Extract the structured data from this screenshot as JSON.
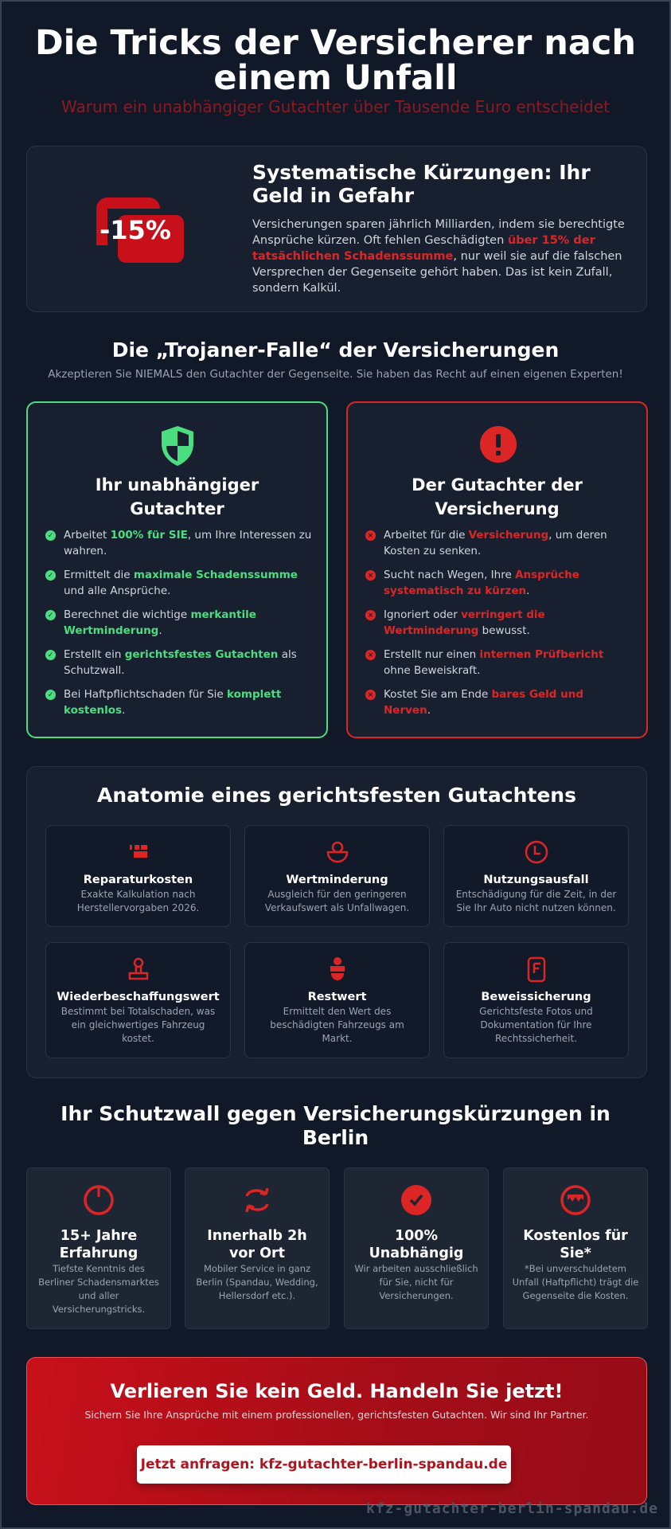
{
  "header": {
    "title": "Die Tricks der Versicherer nach einem Unfall",
    "subtitle": "Warum ein unabhängiger Gutachter über Tausende Euro entscheidet"
  },
  "intro": {
    "badge": "-15%",
    "heading": "Systematische Kürzungen: Ihr Geld in Gefahr",
    "text_before": "Versicherungen sparen jährlich Milliarden, indem sie berechtigte Ansprüche kürzen. Oft fehlen Geschädigten ",
    "text_highlight": "über 15% der tatsächlichen Schadenssumme",
    "text_after": ", nur weil sie auf die falschen Versprechen der Gegenseite gehört haben. Das ist kein Zufall, sondern Kalkül."
  },
  "trap": {
    "heading": "Die „Trojaner-Falle“ der Versicherungen",
    "subheading": "Akzeptieren Sie NIEMALS den Gutachter der Gegenseite. Sie haben das Recht auf einen eigenen Experten!",
    "good": {
      "icon": "shield-icon",
      "title": "Ihr unabhängiger Gutachter",
      "items": [
        {
          "pre": "Arbeitet ",
          "hl": "100% für SIE",
          "post": ", um Ihre Interessen zu wahren."
        },
        {
          "pre": "Ermittelt die ",
          "hl": "maximale Schadenssumme",
          "post": " und alle Ansprüche."
        },
        {
          "pre": "Berechnet die wichtige ",
          "hl": "merkantile Wertminderung",
          "post": "."
        },
        {
          "pre": "Erstellt ein ",
          "hl": "gerichtsfestes Gutachten",
          "post": " als Schutzwall."
        },
        {
          "pre": "Bei Haftpflichtschaden für Sie ",
          "hl": "komplett kostenlos",
          "post": "."
        }
      ]
    },
    "bad": {
      "icon": "exclamation-icon",
      "title": "Der Gutachter der Versicherung",
      "items": [
        {
          "pre": "Arbeitet für die ",
          "hl": "Versicherung",
          "post": ", um deren Kosten zu senken."
        },
        {
          "pre": "Sucht nach Wegen, Ihre ",
          "hl": "Ansprüche systematisch zu kürzen",
          "post": "."
        },
        {
          "pre": "Ignoriert oder ",
          "hl": "verringert die Wertminderung",
          "post": " bewusst."
        },
        {
          "pre": "Erstellt nur einen ",
          "hl": "internen Prüfbericht",
          "post": " ohne Beweiskraft."
        },
        {
          "pre": "Kostet Sie am Ende ",
          "hl": "bares Geld und Nerven",
          "post": "."
        }
      ]
    },
    "colors": {
      "good": "#4ade80",
      "bad": "#dc2626"
    }
  },
  "anatomy": {
    "heading": "Anatomie eines gerichtsfesten Gutachtens",
    "items": [
      {
        "title": "Reparaturkosten",
        "desc": "Exakte Kalkulation nach Herstellervorgaben 2026."
      },
      {
        "title": "Wertminderung",
        "desc": "Ausgleich für den geringeren Verkaufswert als Unfallwagen."
      },
      {
        "title": "Nutzungsausfall",
        "desc": "Entschädigung für die Zeit, in der Sie Ihr Auto nicht nutzen können."
      },
      {
        "title": "Wiederbeschaffungswert",
        "desc": "Bestimmt bei Totalschaden, was ein gleichwertiges Fahrzeug kostet."
      },
      {
        "title": "Restwert",
        "desc": "Ermittelt den Wert des beschädigten Fahrzeugs am Markt."
      },
      {
        "title": "Beweissicherung",
        "desc": "Gerichtsfeste Fotos und Dokumentation für Ihre Rechtssicherheit."
      }
    ]
  },
  "features": {
    "heading": "Ihr Schutzwall gegen Versicherungskürzungen in Berlin",
    "items": [
      {
        "title": "15+ Jahre Erfahrung",
        "desc": "Tiefste Kenntnis des Berliner Schadensmarktes und aller Versicherungstricks."
      },
      {
        "title": "Innerhalb 2h vor Ort",
        "desc": "Mobiler Service in ganz Berlin (Spandau, Wedding, Hellersdorf etc.)."
      },
      {
        "title": "100% Unabhängig",
        "desc": "Wir arbeiten ausschließlich für Sie, nicht für Versicherungen."
      },
      {
        "title": "Kostenlos für Sie*",
        "desc": "*Bei unverschuldetem Unfall (Haftpflicht) trägt die Gegenseite die Kosten."
      }
    ]
  },
  "cta": {
    "heading": "Verlieren Sie kein Geld. Handeln Sie jetzt!",
    "text": "Sichern Sie Ihre Ansprüche mit einem professionellen, gerichtsfesten Gutachten. Wir sind Ihr Partner.",
    "button": "Jetzt anfragen: kfz-gutachter-berlin-spandau.de"
  },
  "watermark": "kfz-gutachter-berlin-spandau.de",
  "accent": "#dc2626"
}
